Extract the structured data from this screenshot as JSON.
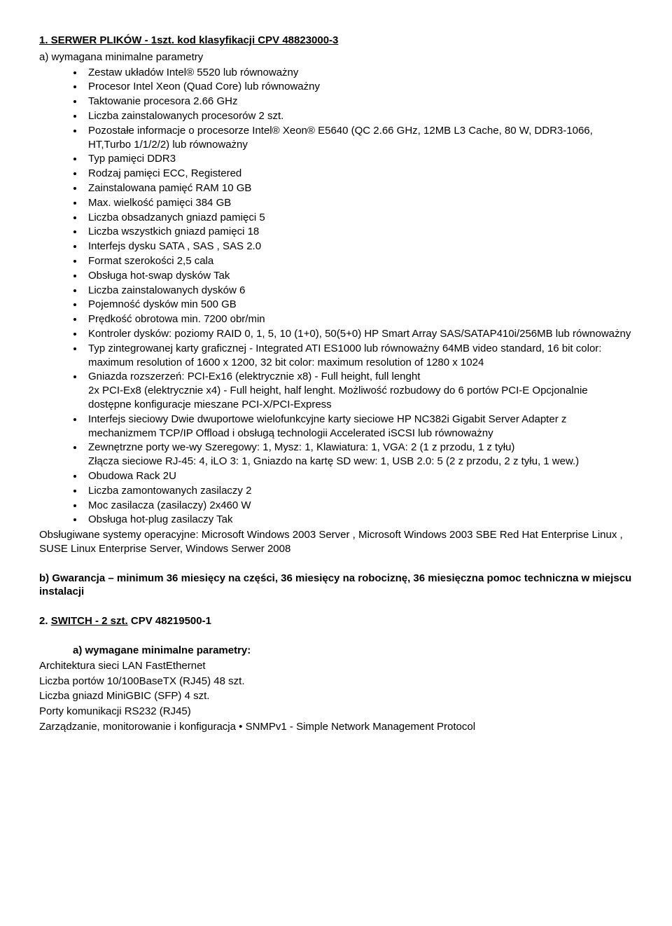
{
  "section1": {
    "title": "1. SERWER PLIKÓW - 1szt. kod klasyfikacji CPV 48823000-3",
    "lead": "a) wymagana minimalne parametry",
    "bullets": [
      "Zestaw układów Intel® 5520 lub równoważny",
      "Procesor Intel Xeon (Quad Core) lub równoważny",
      "Taktowanie procesora 2.66 GHz",
      "Liczba zainstalowanych procesorów 2 szt.",
      "Pozostałe informacje o procesorze Intel® Xeon®   E5640 (QC 2.66 GHz, 12MB L3 Cache, 80 W, DDR3-1066, HT,Turbo 1/1/2/2) lub równoważny",
      "Typ pamięci  DDR3",
      "Rodzaj pamięci ECC, Registered",
      "Zainstalowana pamięć RAM 10 GB",
      "Max. wielkość pamięci 384 GB",
      "Liczba obsadzanych gniazd pamięci 5",
      "Liczba wszystkich gniazd pamięci 18",
      "Interfejs dysku  SATA , SAS , SAS 2.0",
      "Format szerokości 2,5 cala",
      "Obsługa hot-swap dysków Tak",
      "Liczba zainstalowanych dysków 6",
      "Pojemność dysków min 500 GB",
      "Prędkość obrotowa min. 7200 obr/min",
      "Kontroler dysków: poziomy RAID 0, 1, 5, 10 (1+0), 50(5+0) HP Smart Array SAS/SATAP410i/256MB lub równoważny",
      "Typ zintegrowanej karty graficznej - Integrated ATI ES1000 lub równoważny 64MB video standard, 16 bit color: maximum resolution of 1600 x 1200, 32 bit color: maximum resolution of 1280 x 1024",
      "Gniazda rozszerzeń: PCI-Ex16 (elektrycznie x8) - Full height, full lenght\n2x PCI-Ex8   (elektrycznie x4) - Full height, half lenght. Możliwość rozbudowy do 6 portów PCI-E Opcjonalnie dostępne konfiguracje mieszane PCI-X/PCI-Express",
      "Interfejs sieciowy          Dwie dwuportowe wielofunkcyjne karty sieciowe HP NC382i Gigabit Server Adapter z mechanizmem TCP/IP Offload i obsługą technologii Accelerated iSCSI lub równoważny",
      "Zewnętrzne porty we-wy          Szeregowy: 1, Mysz: 1, Klawiatura: 1, VGA: 2 (1 z przodu, 1 z tyłu)\nZłącza sieciowe RJ-45: 4, iLO 3:  1, Gniazdo na kartę SD wew: 1, USB 2.0: 5 (2 z przodu, 2 z tyłu, 1 wew.)",
      "Obudowa           Rack 2U",
      "Liczba zamontowanych zasilaczy            2",
      "Moc zasilacza (zasilaczy) 2x460 W",
      "Obsługa hot-plug zasilaczy Tak"
    ],
    "os_line": "Obsługiwane systemy operacyjne: Microsoft Windows 2003 Server , Microsoft Windows 2003 SBE Red Hat Enterprise Linux , SUSE Linux Enterprise Server, Windows Serwer 2008",
    "warranty": "b) Gwarancja – minimum 36 miesięcy na części, 36 miesięcy na robociznę, 36 miesięczna pomoc techniczna w miejscu instalacji"
  },
  "section2": {
    "prefix": "2. ",
    "title_underlined": "SWITCH - 2 szt.",
    "title_suffix": " CPV 48219500-1",
    "lead": "a) wymagane minimalne parametry:",
    "lines": [
      "Architektura sieci LAN FastEthernet",
      "Liczba portów 10/100BaseTX (RJ45) 48 szt.",
      "Liczba gniazd MiniGBIC (SFP) 4 szt.",
      "Porty komunikacji RS232 (RJ45)",
      "Zarządzanie, monitorowanie i konfiguracja • SNMPv1 - Simple Network Management Protocol"
    ]
  }
}
